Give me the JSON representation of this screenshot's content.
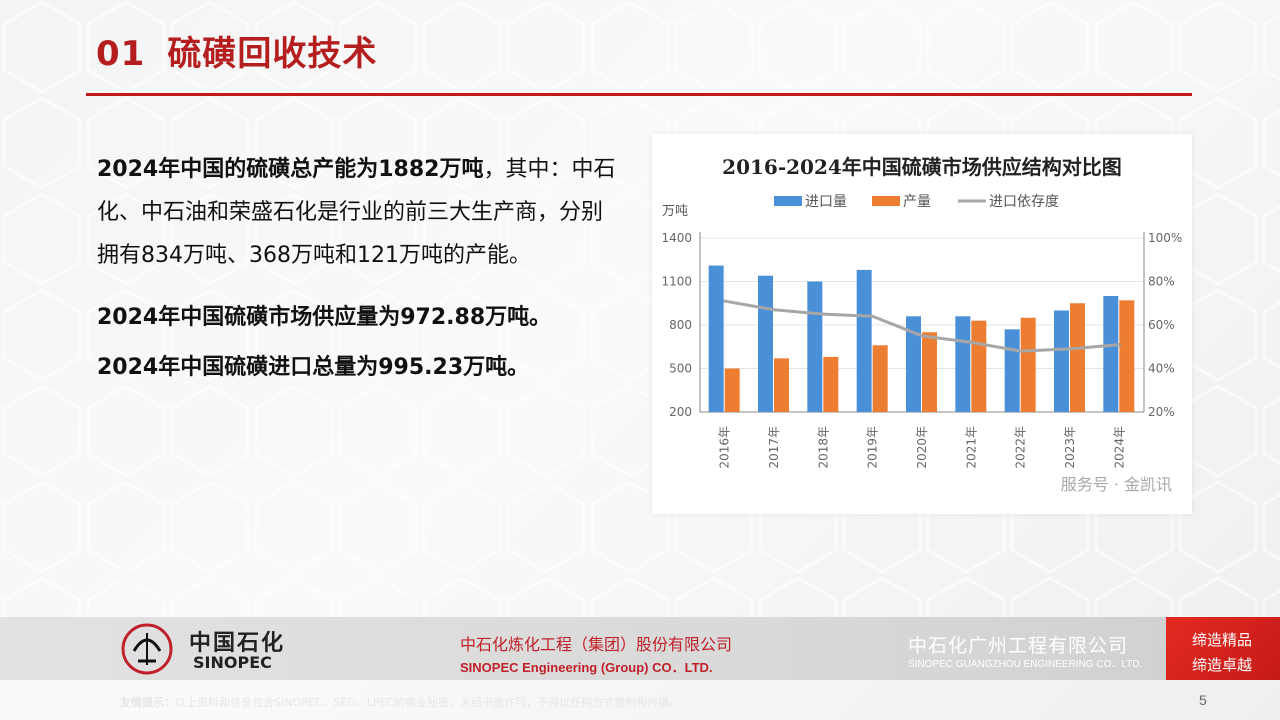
{
  "header": {
    "section_number": "01",
    "title": "硫磺回收技术"
  },
  "content": {
    "para_bold": "2024年中国的硫磺总产能为1882万吨",
    "para_rest": "，其中：中石化、中石油和荣盛石化是行业的前三大生产商，分别拥有834万吨、368万吨和121万吨的产能。",
    "fact_supply": "2024年中国硫磺市场供应量为972.88万吨。",
    "fact_import": "2024年中国硫磺进口总量为995.23万吨。"
  },
  "chart_data": {
    "type": "bar",
    "title": "2016-2024年中国硫磺市场供应结构对比图",
    "ylabel": "万吨",
    "categories": [
      "2016年",
      "2017年",
      "2018年",
      "2019年",
      "2020年",
      "2021年",
      "2022年",
      "2023年",
      "2024年"
    ],
    "series": [
      {
        "name": "进口量",
        "type": "bar",
        "color": "#4a90d9",
        "values": [
          1210,
          1140,
          1100,
          1180,
          860,
          860,
          770,
          900,
          1000
        ]
      },
      {
        "name": "产量",
        "type": "bar",
        "color": "#ed7d31",
        "values": [
          500,
          570,
          580,
          660,
          750,
          830,
          850,
          950,
          970
        ]
      },
      {
        "name": "进口依存度",
        "type": "line",
        "color": "#a6a6a6",
        "axis": "right",
        "values": [
          71,
          67,
          65,
          64,
          55,
          52,
          48,
          49,
          51
        ]
      }
    ],
    "ylim": [
      200,
      1400
    ],
    "yticks": [
      200,
      500,
      800,
      1100,
      1400
    ],
    "y2lim": [
      20,
      100
    ],
    "y2ticks": [
      "20%",
      "40%",
      "60%",
      "80%",
      "100%"
    ],
    "legend_position": "top",
    "watermark": "服务号 · 金凯讯"
  },
  "footer": {
    "logo_cn": "中国石化",
    "logo_en": "SINOPEC",
    "company_cn": "中石化炼化工程（集团）股份有限公司",
    "company_en": "SINOPEC Engineering (Group) CO．LTD.",
    "gz_cn": "中石化广州工程有限公司",
    "gz_en": "SINOPEC GUANGZHOU ENGINEERING CO．LTD.",
    "badge_line1": "缔造精品",
    "badge_line2": "缔造卓越",
    "notice_label": "友情提示：",
    "notice_text": "以上资料和信息包含SINOPEC、SEG、LPEC的商业秘密，未经书面许可，不得以任何方式复制和传播。",
    "page_number": "5"
  },
  "colors": {
    "accent": "#c01a1a",
    "bar_import": "#4a90d9",
    "bar_output": "#ed7d31",
    "line": "#a6a6a6"
  }
}
